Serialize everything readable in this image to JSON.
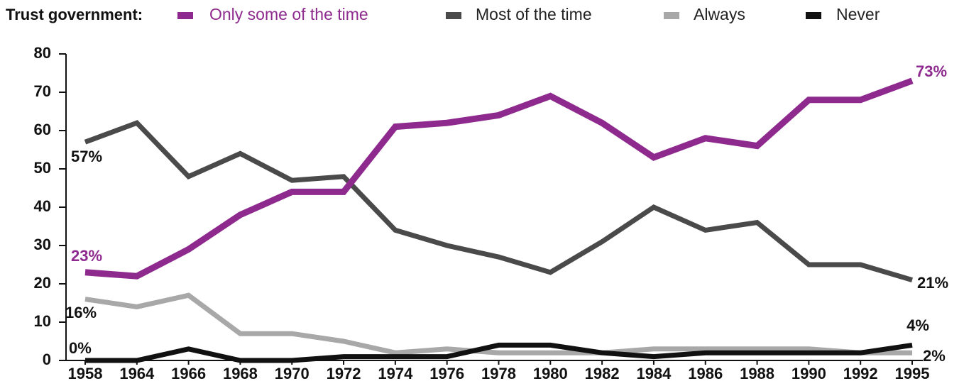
{
  "chart_data": {
    "type": "line",
    "legend_title": "Trust government:",
    "categories": [
      "1958",
      "1964",
      "1966",
      "1968",
      "1970",
      "1972",
      "1974",
      "1976",
      "1978",
      "1980",
      "1982",
      "1984",
      "1986",
      "1988",
      "1990",
      "1992",
      "1995"
    ],
    "series": [
      {
        "name": "Only some of the time",
        "color": "#8e2a8e",
        "values": [
          23,
          22,
          29,
          38,
          44,
          44,
          61,
          62,
          64,
          69,
          62,
          53,
          58,
          56,
          68,
          68,
          73
        ],
        "value_labels": [
          "23%",
          null,
          null,
          null,
          null,
          null,
          null,
          null,
          null,
          null,
          null,
          null,
          null,
          null,
          null,
          null,
          "73%"
        ]
      },
      {
        "name": "Most of the time",
        "color": "#4a4a4a",
        "values": [
          57,
          62,
          48,
          54,
          47,
          48,
          34,
          30,
          27,
          23,
          31,
          40,
          34,
          36,
          25,
          25,
          21
        ],
        "value_labels": [
          "57%",
          null,
          null,
          null,
          null,
          null,
          null,
          null,
          null,
          null,
          null,
          null,
          null,
          null,
          null,
          null,
          "21%"
        ]
      },
      {
        "name": "Always",
        "color": "#a8a8a8",
        "values": [
          16,
          14,
          17,
          7,
          7,
          5,
          2,
          3,
          2,
          2,
          2,
          3,
          3,
          3,
          3,
          2,
          2
        ],
        "value_labels": [
          "16%",
          null,
          null,
          null,
          null,
          null,
          null,
          null,
          null,
          null,
          null,
          null,
          null,
          null,
          null,
          null,
          "2%"
        ]
      },
      {
        "name": "Never",
        "color": "#111111",
        "values": [
          0,
          0,
          3,
          0,
          0,
          1,
          1,
          1,
          4,
          4,
          2,
          1,
          2,
          2,
          2,
          2,
          4
        ],
        "value_labels": [
          "0%",
          null,
          null,
          null,
          null,
          null,
          null,
          null,
          null,
          null,
          null,
          null,
          null,
          null,
          null,
          null,
          "4%"
        ]
      }
    ],
    "ylim": [
      0,
      80
    ],
    "yticks": [
      0,
      10,
      20,
      30,
      40,
      50,
      60,
      70,
      80
    ]
  }
}
